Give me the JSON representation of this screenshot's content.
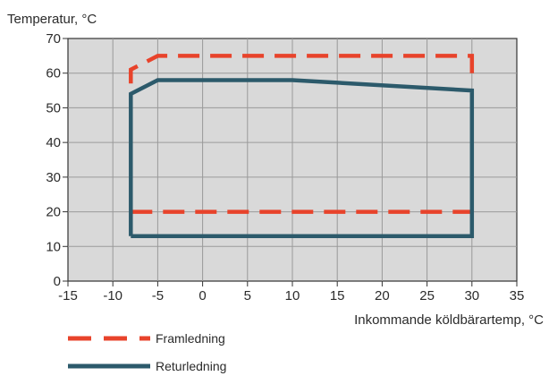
{
  "chart_data": {
    "type": "line",
    "ylabel": "Temperatur, °C",
    "xlabel": "Inkommande köldbärartemp, °C",
    "xlim": [
      -15,
      35
    ],
    "ylim": [
      0,
      70
    ],
    "x_ticks": [
      -15,
      -10,
      -5,
      0,
      5,
      10,
      15,
      20,
      25,
      30,
      35
    ],
    "y_ticks": [
      0,
      10,
      20,
      30,
      40,
      50,
      60,
      70
    ],
    "grid": true,
    "legend_position": "bottom-left",
    "series": [
      {
        "name": "Framledning",
        "style": "dashed",
        "color": "#e8432b",
        "points": [
          [
            -8,
            57
          ],
          [
            -8,
            61
          ],
          [
            -5,
            65
          ],
          [
            30,
            65
          ],
          [
            30,
            57
          ]
        ]
      },
      {
        "name": "Framledning",
        "style": "dashed",
        "color": "#e8432b",
        "points": [
          [
            -8,
            20
          ],
          [
            30,
            20
          ]
        ]
      },
      {
        "name": "Returledning",
        "style": "solid",
        "color": "#2c5a6b",
        "points": [
          [
            -8,
            13
          ],
          [
            -8,
            54
          ],
          [
            -5,
            58
          ],
          [
            10,
            58
          ],
          [
            30,
            55
          ],
          [
            30,
            13
          ],
          [
            -8,
            13
          ]
        ]
      }
    ]
  }
}
